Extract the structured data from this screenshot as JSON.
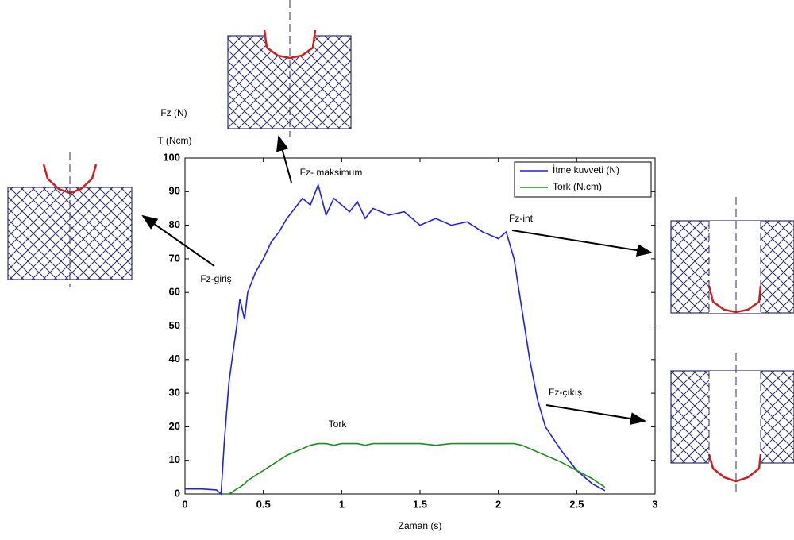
{
  "chart_data": {
    "type": "line",
    "xlabel": "Zaman (s)",
    "ylabels": [
      "Fz (N)",
      "T (Ncm)"
    ],
    "x": [
      0,
      0.1,
      0.2,
      0.23,
      0.25,
      0.28,
      0.3,
      0.33,
      0.35,
      0.38,
      0.4,
      0.45,
      0.5,
      0.55,
      0.6,
      0.65,
      0.7,
      0.75,
      0.8,
      0.85,
      0.9,
      0.95,
      1.0,
      1.05,
      1.1,
      1.15,
      1.2,
      1.3,
      1.4,
      1.5,
      1.6,
      1.7,
      1.8,
      1.9,
      2.0,
      2.05,
      2.1,
      2.15,
      2.2,
      2.25,
      2.3,
      2.4,
      2.5,
      2.6,
      2.68
    ],
    "series": [
      {
        "name": "İtme kuvveti (N)",
        "color": "#1f1fe6",
        "values": [
          1.5,
          1.5,
          1.2,
          0,
          15,
          33,
          40,
          50,
          58,
          52,
          60,
          66,
          70,
          75,
          78,
          82,
          85,
          88,
          86,
          92,
          83,
          88,
          86,
          84,
          87,
          82,
          85,
          83,
          84,
          80,
          82,
          80,
          81,
          78,
          76,
          78,
          70,
          55,
          40,
          28,
          20,
          13,
          7,
          3,
          1
        ]
      },
      {
        "name": "Tork (N.cm)",
        "color": "#1e8c1e",
        "values": [
          null,
          null,
          null,
          null,
          0,
          0,
          0.5,
          1.5,
          2,
          3,
          4,
          5.5,
          7,
          8.5,
          10,
          11.5,
          12.5,
          13.5,
          14.5,
          15,
          15,
          14.5,
          15,
          15,
          15,
          14.5,
          15,
          15,
          15,
          15,
          14.5,
          15,
          15,
          15,
          15,
          15,
          15,
          14.5,
          13.5,
          12.5,
          11.5,
          9.5,
          7,
          4.5,
          2
        ]
      }
    ],
    "xlim": [
      0,
      3
    ],
    "xticks": [
      0,
      0.5,
      1,
      1.5,
      2,
      2.5,
      3
    ],
    "ylim": [
      0,
      100
    ],
    "yticks": [
      0,
      10,
      20,
      30,
      40,
      50,
      60,
      70,
      80,
      90,
      100
    ],
    "grid": false,
    "legend": "upper right",
    "annotations": [
      "Fz- maksimum",
      "Fz-giriş",
      "Fz-int",
      "Fz-çıkış",
      "Tork"
    ]
  }
}
